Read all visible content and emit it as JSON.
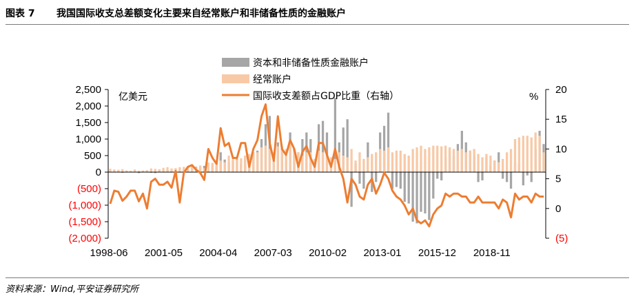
{
  "header": {
    "figure_number": "图表 7",
    "title": "我国国际收支总差额变化主要来自经常账户和非储备性质的金融账户"
  },
  "source": "资料来源：Wind,平安证券研究所",
  "colors": {
    "financial_bar": "#a6a6a6",
    "current_bar": "#f8c9a6",
    "ratio_line": "#ed7d31",
    "negative_label": "#ff0000"
  },
  "chart_data": {
    "type": "bar",
    "unit_left": "亿美元",
    "unit_right": "%",
    "legend_position": "top-center",
    "y_left": {
      "min": -2000,
      "max": 2500,
      "ticks": [
        2500,
        2000,
        1500,
        1000,
        500,
        0,
        -500,
        -1000,
        -1500,
        -2000
      ],
      "tick_labels": [
        "2,500",
        "2,000",
        "1,500",
        "1,000",
        "500",
        "0",
        "(500)",
        "(1,000)",
        "(1,500)",
        "(2,000)"
      ]
    },
    "y_right": {
      "min": -5,
      "max": 20,
      "ticks": [
        20,
        15,
        10,
        5,
        0,
        -5
      ],
      "tick_labels": [
        "20",
        "15",
        "10",
        "5",
        "0",
        "(5)"
      ]
    },
    "x_tick_labels": [
      "1998-06",
      "2001-05",
      "2004-04",
      "2007-03",
      "2010-02",
      "2013-01",
      "2015-12",
      "2018-11"
    ],
    "series": [
      {
        "name": "资本和非储备性质金融账户",
        "kind": "bar",
        "values": [
          60,
          40,
          30,
          -20,
          20,
          10,
          40,
          -30,
          20,
          40,
          -20,
          -30,
          80,
          50,
          60,
          40,
          90,
          70,
          100,
          80,
          120,
          160,
          140,
          190,
          40,
          200,
          180,
          600,
          380,
          300,
          350,
          400,
          250,
          480,
          350,
          600,
          650,
          1000,
          1450,
          1700,
          600,
          900,
          750,
          380,
          1200,
          700,
          600,
          1000,
          1200,
          1000,
          250,
          1450,
          1550,
          1200,
          350,
          2250,
          900,
          1350,
          1600,
          -1050,
          250,
          -350,
          -500,
          900,
          -600,
          -300,
          1200,
          1400,
          1800,
          -500,
          -450,
          -500,
          -900,
          -950,
          -1500,
          -1550,
          -1200,
          -1250,
          -1450,
          -800,
          -200,
          -250,
          450,
          650,
          500,
          850,
          1250,
          900,
          650,
          500,
          -300,
          -250,
          450,
          200,
          350,
          600,
          -200,
          -300,
          -500,
          300,
          250,
          -400,
          -100,
          -300,
          700,
          1250,
          850
        ],
        "legend": "资本和非储备性质金融账户"
      },
      {
        "name": "经常账户",
        "kind": "bar",
        "values": [
          100,
          80,
          70,
          90,
          50,
          40,
          80,
          40,
          50,
          60,
          110,
          100,
          80,
          130,
          150,
          110,
          120,
          150,
          160,
          140,
          180,
          140,
          200,
          120,
          290,
          280,
          300,
          350,
          300,
          500,
          450,
          380,
          420,
          500,
          550,
          600,
          600,
          750,
          800,
          700,
          600,
          780,
          800,
          700,
          950,
          650,
          600,
          500,
          600,
          600,
          400,
          650,
          600,
          500,
          450,
          400,
          600,
          500,
          450,
          700,
          350,
          600,
          400,
          450,
          550,
          600,
          700,
          650,
          750,
          600,
          650,
          650,
          550,
          500,
          700,
          750,
          800,
          700,
          750,
          800,
          800,
          780,
          800,
          750,
          700,
          650,
          700,
          600,
          650,
          700,
          550,
          450,
          550,
          500,
          350,
          300,
          400,
          600,
          700,
          1000,
          1050,
          1100,
          1100,
          1050,
          1200,
          1100,
          600
        ],
        "legend": "经常账户"
      },
      {
        "name": "国际收支差额占GDP比重（右轴）",
        "kind": "line",
        "axis": "right",
        "values": [
          0.8,
          3,
          2.8,
          1.3,
          2,
          3,
          3,
          1.2,
          2.5,
          0,
          4.5,
          5,
          4,
          4,
          4.5,
          3.5,
          6.3,
          1,
          6,
          7,
          7.3,
          6.5,
          6,
          4.8,
          10,
          8.5,
          7.5,
          13.5,
          10.5,
          11,
          8.5,
          8.5,
          11,
          11,
          7,
          10,
          11.5,
          15.5,
          17.5,
          11,
          8,
          15.5,
          10,
          9,
          11.5,
          10,
          7,
          9.5,
          10.5,
          8.5,
          7,
          11,
          11,
          9,
          7,
          10,
          7,
          5,
          1,
          5,
          4,
          2,
          1.5,
          4,
          5,
          2.5,
          4,
          6,
          5,
          3,
          2,
          1.5,
          0.5,
          -1,
          0,
          -2,
          -2.5,
          -2,
          -3,
          -1,
          0,
          0.5,
          2.5,
          2,
          2.5,
          2.5,
          2,
          2,
          1,
          1,
          2,
          1,
          1,
          1,
          1,
          0,
          1.5,
          1,
          -1.5,
          2.5,
          1.5,
          2,
          2,
          1,
          2.5,
          2,
          2
        ],
        "legend": "国际收支差额占GDP比重（右轴）"
      }
    ]
  }
}
